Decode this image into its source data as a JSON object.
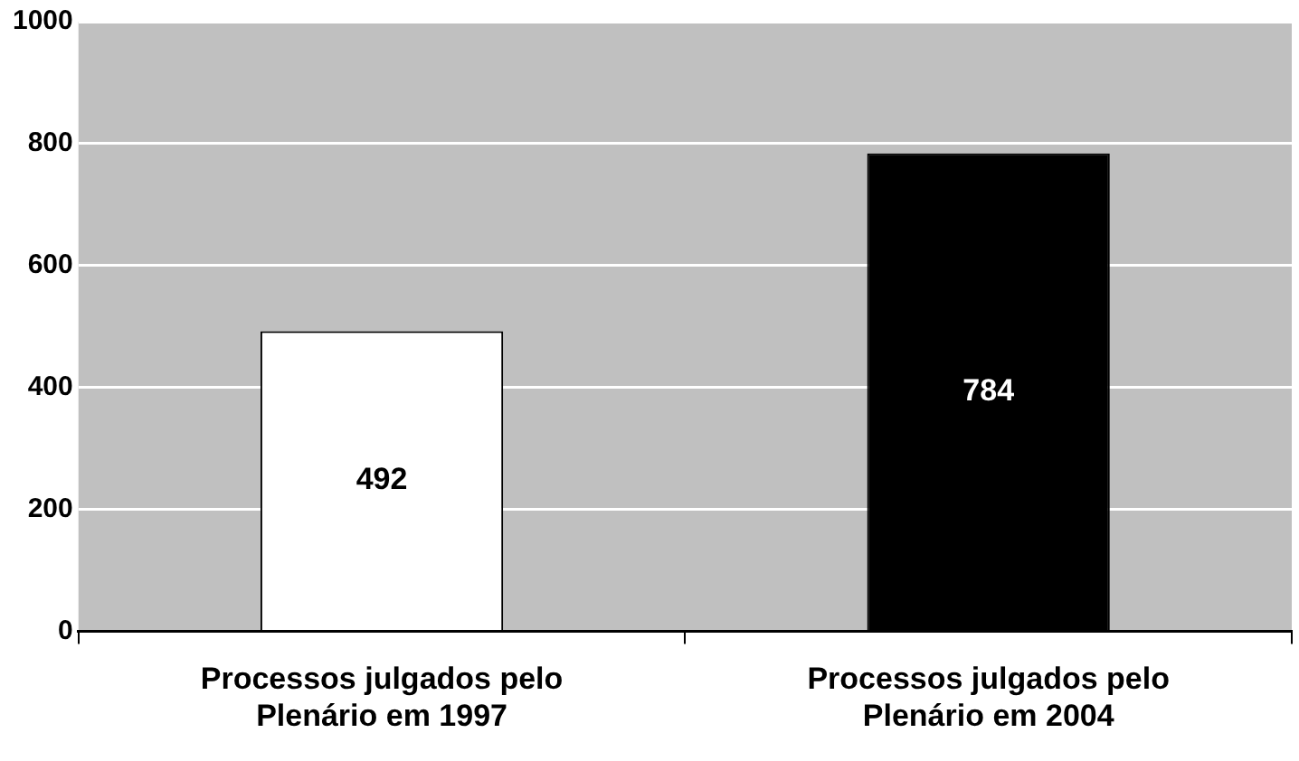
{
  "chart_data": {
    "type": "bar",
    "categories": [
      "Processos julgados pelo Plenário em 1997",
      "Processos julgados pelo Plenário em 2004"
    ],
    "values": [
      492,
      784
    ],
    "colors": [
      "#ffffff",
      "#000000"
    ],
    "ylim": [
      0,
      1000
    ],
    "yticks": [
      0,
      200,
      400,
      600,
      800,
      1000
    ],
    "grid": "y",
    "data_labels": true
  }
}
